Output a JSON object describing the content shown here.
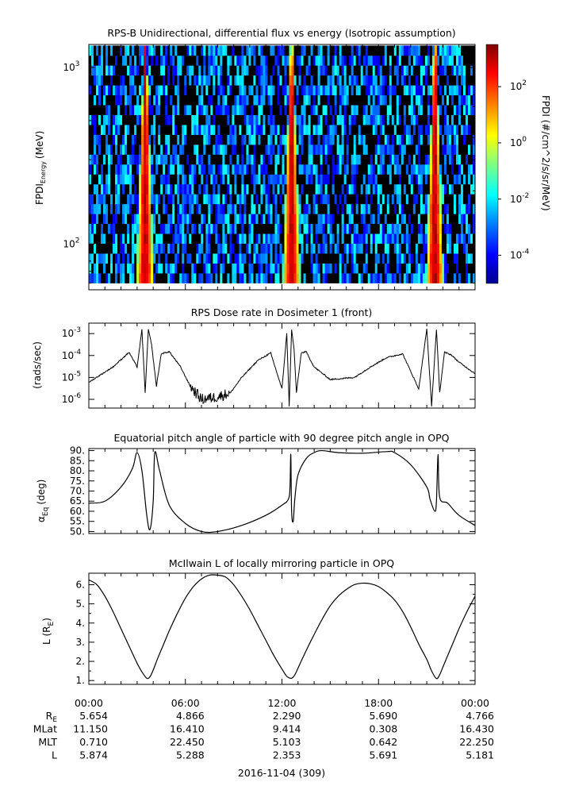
{
  "date_label": "2016-11-04 (309)",
  "time_ticks": [
    "00:00",
    "06:00",
    "12:00",
    "18:00",
    "00:00"
  ],
  "ephemeris": [
    {
      "label": "R",
      "sub": "E",
      "values": [
        "5.654",
        "4.866",
        "2.290",
        "5.690",
        "4.766"
      ]
    },
    {
      "label": "MLat",
      "sub": "",
      "values": [
        "11.150",
        "16.410",
        "9.414",
        "0.308",
        "16.430"
      ]
    },
    {
      "label": "MLT",
      "sub": "",
      "values": [
        "0.710",
        "22.450",
        "5.103",
        "0.642",
        "22.250"
      ]
    },
    {
      "label": "L",
      "sub": "",
      "values": [
        "5.874",
        "5.288",
        "2.353",
        "5.691",
        "5.181"
      ]
    }
  ],
  "colors": {
    "colormap": [
      "#00008f",
      "#0000ff",
      "#0080ff",
      "#00ffff",
      "#80ff80",
      "#ffff00",
      "#ff8000",
      "#ff0000",
      "#800000"
    ],
    "fill_value": "#000000",
    "line": "#000000"
  },
  "chart_data": [
    {
      "type": "heatmap",
      "title": "RPS-B  Unidirectional, differential flux vs energy (Isotropic assumption)",
      "ylabel": "FPDI",
      "ylabel_sub": "Energy",
      "ylabel_unit": "(MeV)",
      "y_scale": "log",
      "ylim": [
        55,
        1350
      ],
      "y_ticks": [
        {
          "base": "10",
          "exp": "2",
          "value": 100
        },
        {
          "base": "10",
          "exp": "3",
          "value": 1000
        }
      ],
      "x_range_hours": [
        0,
        24
      ],
      "colorbar": {
        "label": "FPDI (#/cm^2/s/sr/MeV)",
        "scale": "log",
        "range_log10": [
          -5,
          3.5
        ],
        "ticks": [
          {
            "base": "10",
            "exp": "2",
            "log": 2
          },
          {
            "base": "10",
            "exp": "0",
            "log": 0
          },
          {
            "base": "10",
            "exp": "-2",
            "log": -2
          },
          {
            "base": "10",
            "exp": "-4",
            "log": -4
          }
        ]
      },
      "peaks_hours": [
        3.5,
        12.6,
        21.5
      ],
      "peak_max_log_flux": 3
    },
    {
      "type": "line",
      "title": "RPS  Dose rate in Dosimeter 1 (front)",
      "ylabel": "(rads/sec)",
      "y_scale": "log",
      "ylim": [
        4e-07,
        0.003
      ],
      "y_ticks": [
        {
          "base": "10",
          "exp": "-3",
          "value": 0.001
        },
        {
          "base": "10",
          "exp": "-4",
          "value": 0.0001
        },
        {
          "base": "10",
          "exp": "-5",
          "value": 1e-05
        },
        {
          "base": "10",
          "exp": "-6",
          "value": 1e-06
        }
      ],
      "series": [
        {
          "x_hours": [
            0.0,
            1.5,
            2.5,
            3.0,
            3.3,
            3.5,
            3.7,
            3.9,
            4.2,
            4.5,
            5.0,
            5.7,
            6.3,
            7.0,
            8.0,
            8.8,
            9.5,
            10.5,
            11.3,
            12.0,
            12.3,
            12.45,
            12.6,
            12.75,
            12.9,
            13.2,
            13.5,
            14.0,
            15.0,
            16.5,
            17.5,
            18.5,
            19.5,
            20.5,
            21.0,
            21.3,
            21.6,
            21.8,
            22.1,
            22.5,
            23.0,
            24.0
          ],
          "y": [
            6e-06,
            3e-05,
            0.00014,
            3e-05,
            0.0015,
            2e-06,
            0.0016,
            0.0003,
            4e-06,
            0.00012,
            0.00015,
            3e-05,
            4e-06,
            1e-06,
            1.3e-06,
            2e-06,
            1e-05,
            6e-05,
            0.00013,
            3e-06,
            0.001,
            5e-07,
            0.0015,
            0.0002,
            2e-06,
            0.00013,
            0.00015,
            3e-05,
            8e-06,
            1e-05,
            3e-05,
            8e-05,
            0.00012,
            3e-06,
            0.0016,
            5e-07,
            0.0016,
            2e-06,
            0.00014,
            0.00011,
            5e-05,
            1.5e-05
          ]
        }
      ]
    },
    {
      "type": "line",
      "title": "Equatorial pitch angle of particle with 90 degree pitch angle in OPQ",
      "ylabel": "α",
      "ylabel_sub": "Eq",
      "ylabel_unit": "(deg)",
      "ylim": [
        49,
        91
      ],
      "y_ticks": [
        90,
        85,
        80,
        75,
        70,
        65,
        60,
        55,
        50
      ],
      "series": [
        {
          "x_hours": [
            0.0,
            1.0,
            2.0,
            2.7,
            3.0,
            3.3,
            3.6,
            3.8,
            4.0,
            4.1,
            4.4,
            5.0,
            6.0,
            7.0,
            8.0,
            9.5,
            11.0,
            12.0,
            12.4,
            12.5,
            12.55,
            12.6,
            12.7,
            12.8,
            13.0,
            13.5,
            14.0,
            14.5,
            15.5,
            17.0,
            18.5,
            19.0,
            20.0,
            21.0,
            21.2,
            21.5,
            21.6,
            21.7,
            21.8,
            22.3,
            23.0,
            24.0
          ],
          "y": [
            64,
            65,
            72,
            81,
            89,
            80,
            58,
            51,
            65,
            89,
            80,
            63,
            54,
            50,
            50,
            53,
            58,
            63,
            66,
            72,
            88,
            60,
            55,
            66,
            78,
            86,
            89,
            90,
            89,
            88.7,
            89.5,
            89,
            83,
            72,
            66,
            60,
            65,
            88,
            67,
            64,
            58,
            53
          ]
        }
      ]
    },
    {
      "type": "line",
      "title": "McIlwain L of locally mirroring particle in OPQ",
      "ylabel": "L (R",
      "ylabel_sub": "E",
      "ylabel_unit": ")",
      "ylim": [
        0.8,
        6.6
      ],
      "y_ticks": [
        6,
        5,
        4,
        3,
        2,
        1
      ],
      "y_tick_labels": [
        "6.",
        "5.",
        "4.",
        "3.",
        "2.",
        "1."
      ],
      "series": [
        {
          "x_hours": [
            0.0,
            0.5,
            1.0,
            1.5,
            2.0,
            2.5,
            3.0,
            3.3,
            3.6,
            3.8,
            4.0,
            4.3,
            4.7,
            5.0,
            5.5,
            6.0,
            6.5,
            7.0,
            7.5,
            8.0,
            8.5,
            9.0,
            9.5,
            10.0,
            10.5,
            11.0,
            11.5,
            12.0,
            12.3,
            12.6,
            12.8,
            13.0,
            13.3,
            13.7,
            14.0,
            14.5,
            15.0,
            15.5,
            16.0,
            16.5,
            17.0,
            17.5,
            18.0,
            18.5,
            19.0,
            19.5,
            20.0,
            20.5,
            21.0,
            21.3,
            21.6,
            21.8,
            22.0,
            22.3,
            22.7,
            23.0,
            23.5,
            24.0
          ],
          "y": [
            6.25,
            6.0,
            5.4,
            4.6,
            3.7,
            2.8,
            1.9,
            1.45,
            1.12,
            1.2,
            1.55,
            2.2,
            3.0,
            3.6,
            4.5,
            5.3,
            5.9,
            6.3,
            6.5,
            6.5,
            6.4,
            6.0,
            5.4,
            4.7,
            3.9,
            3.1,
            2.3,
            1.6,
            1.22,
            1.12,
            1.3,
            1.65,
            2.2,
            2.9,
            3.4,
            4.2,
            4.9,
            5.4,
            5.75,
            6.0,
            6.08,
            6.05,
            5.9,
            5.6,
            5.2,
            4.6,
            3.8,
            2.9,
            2.1,
            1.5,
            1.1,
            1.3,
            1.7,
            2.3,
            3.1,
            3.7,
            4.6,
            5.4
          ]
        }
      ]
    }
  ]
}
